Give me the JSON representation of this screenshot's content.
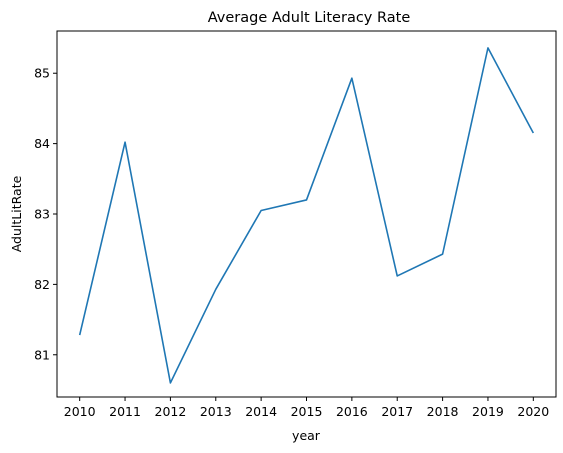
{
  "chart_data": {
    "type": "line",
    "title": "Average Adult Literacy Rate",
    "xlabel": "year",
    "ylabel": "AdultLitRate",
    "x": [
      2010,
      2011,
      2012,
      2013,
      2014,
      2015,
      2016,
      2017,
      2018,
      2019,
      2020
    ],
    "x_ticks": [
      "2010",
      "2011",
      "2012",
      "2013",
      "2014",
      "2015",
      "2016",
      "2017",
      "2018",
      "2019",
      "2020"
    ],
    "y_ticks": [
      "81",
      "82",
      "83",
      "84",
      "85"
    ],
    "ylim": [
      80.4,
      85.6
    ],
    "series": [
      {
        "values": [
          81.28,
          84.02,
          80.6,
          81.93,
          83.05,
          83.2,
          84.93,
          82.12,
          82.43,
          85.36,
          84.15
        ],
        "color": "#1f77b4"
      }
    ],
    "grid": false,
    "legend": "none"
  }
}
